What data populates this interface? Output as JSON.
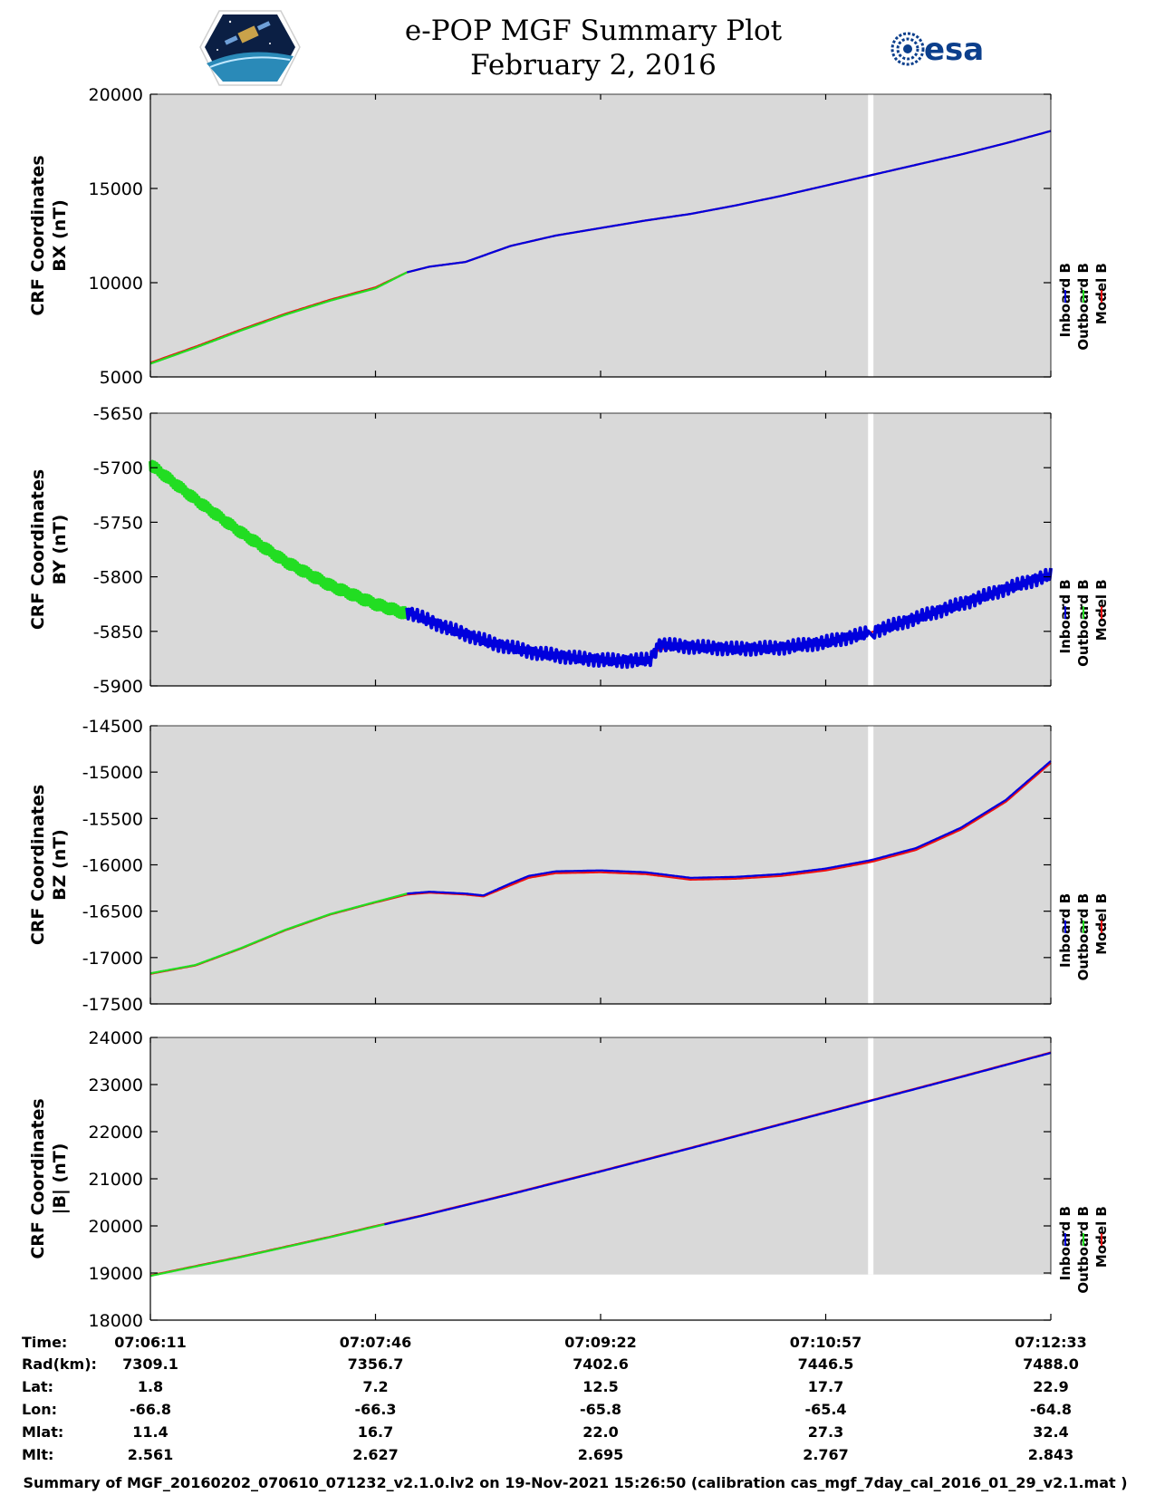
{
  "title": {
    "line1": "e-POP MGF Summary Plot",
    "line2": "February 2, 2016"
  },
  "logos": {
    "left": "cassiope-mission-logo",
    "right_text": "esa"
  },
  "colors": {
    "inboard": "#0000dd",
    "outboard": "#22dd22",
    "model": "#ee1111",
    "plot_bg": "#d9d9d9"
  },
  "legend": [
    "Inboard B",
    "Outboard B",
    "Model B"
  ],
  "chart_data": [
    {
      "type": "line",
      "id": "bx",
      "ylabel_line1": "CRF Coordinates",
      "ylabel_line2": "BX (nT)",
      "ylim": [
        5000,
        20000
      ],
      "yticks": [
        "20000",
        "15000",
        "10000",
        "5000"
      ],
      "x": [
        0,
        0.05,
        0.1,
        0.15,
        0.2,
        0.25,
        0.285,
        0.31,
        0.35,
        0.4,
        0.45,
        0.5,
        0.55,
        0.6,
        0.65,
        0.7,
        0.75,
        0.8,
        0.85,
        0.9,
        0.95,
        1.0
      ],
      "series": [
        {
          "name": "Inboard B",
          "start": 0.285,
          "values": [
            5700,
            6550,
            7450,
            8300,
            9050,
            9700,
            10550,
            10850,
            11100,
            11950,
            12500,
            12900,
            13300,
            13650,
            14100,
            14600,
            15150,
            15700,
            16250,
            16800,
            17400,
            18050
          ]
        },
        {
          "name": "Outboard B",
          "end": 0.285,
          "values": [
            5700,
            6550,
            7450,
            8300,
            9050,
            9700,
            10550,
            10850,
            11100,
            11950,
            12500,
            12900,
            13300,
            13650,
            14100,
            14600,
            15150,
            15700,
            16250,
            16800,
            17400,
            18050
          ]
        },
        {
          "name": "Model B",
          "values": [
            5750,
            6600,
            7500,
            8350,
            9100,
            9750,
            10550,
            10850,
            11100,
            11950,
            12500,
            12900,
            13300,
            13650,
            14100,
            14600,
            15150,
            15700,
            16250,
            16800,
            17400,
            18050
          ]
        }
      ]
    },
    {
      "type": "line",
      "id": "by",
      "ylabel_line1": "CRF Coordinates",
      "ylabel_line2": "BY (nT)",
      "ylim": [
        -5900,
        -5650
      ],
      "yticks": [
        "-5650",
        "-5700",
        "-5750",
        "-5800",
        "-5850",
        "-5900"
      ],
      "x": [
        0,
        0.05,
        0.1,
        0.15,
        0.2,
        0.25,
        0.285,
        0.33,
        0.38,
        0.43,
        0.48,
        0.52,
        0.555,
        0.565,
        0.6,
        0.65,
        0.7,
        0.75,
        0.8,
        0.85,
        0.9,
        0.95,
        1.0
      ],
      "series": [
        {
          "name": "Inboard B",
          "start": 0.285,
          "noise": 6,
          "values": [
            -5695,
            -5727,
            -5757,
            -5783,
            -5805,
            -5822,
            -5832,
            -5847,
            -5861,
            -5870,
            -5875,
            -5877,
            -5876,
            -5862,
            -5864,
            -5866,
            -5865,
            -5860,
            -5851,
            -5838,
            -5825,
            -5811,
            -5798
          ]
        },
        {
          "name": "Outboard B",
          "end": 0.285,
          "noise": 5,
          "values": [
            -5697,
            -5729,
            -5759,
            -5786,
            -5808,
            -5825,
            -5834,
            -5848,
            -5862,
            -5871,
            -5876,
            -5878,
            -5877,
            -5863,
            -5865,
            -5867,
            -5866,
            -5861,
            -5852,
            -5839,
            -5826,
            -5812,
            -5799
          ]
        },
        {
          "name": "Model B",
          "values": [
            -5696,
            -5728,
            -5758,
            -5784,
            -5806,
            -5823,
            -5833,
            -5848,
            -5862,
            -5871,
            -5876,
            -5878,
            -5877,
            -5866,
            -5866,
            -5867,
            -5865,
            -5860,
            -5851,
            -5838,
            -5825,
            -5811,
            -5798
          ]
        }
      ]
    },
    {
      "type": "line",
      "id": "bz",
      "ylabel_line1": "CRF Coordinates",
      "ylabel_line2": "BZ (nT)",
      "ylim": [
        -17500,
        -14500
      ],
      "yticks": [
        "-14500",
        "-15000",
        "-15500",
        "-16000",
        "-16500",
        "-17000",
        "-17500"
      ],
      "x": [
        0,
        0.05,
        0.1,
        0.15,
        0.2,
        0.25,
        0.285,
        0.31,
        0.35,
        0.37,
        0.4,
        0.42,
        0.45,
        0.5,
        0.55,
        0.575,
        0.6,
        0.65,
        0.7,
        0.75,
        0.8,
        0.85,
        0.9,
        0.95,
        1.0
      ],
      "series": [
        {
          "name": "Inboard B",
          "start": 0.285,
          "values": [
            -17170,
            -17080,
            -16900,
            -16700,
            -16530,
            -16400,
            -16310,
            -16290,
            -16310,
            -16330,
            -16200,
            -16120,
            -16070,
            -16060,
            -16080,
            -16110,
            -16140,
            -16130,
            -16100,
            -16040,
            -15950,
            -15820,
            -15600,
            -15300,
            -14880
          ]
        },
        {
          "name": "Outboard B",
          "end": 0.285,
          "values": [
            -17170,
            -17080,
            -16900,
            -16700,
            -16530,
            -16400,
            -16310,
            -16290,
            -16310,
            -16330,
            -16200,
            -16120,
            -16070,
            -16060,
            -16080,
            -16110,
            -16140,
            -16130,
            -16100,
            -16040,
            -15950,
            -15820,
            -15600,
            -15300,
            -14880
          ]
        },
        {
          "name": "Model B",
          "values": [
            -17175,
            -17085,
            -16905,
            -16705,
            -16535,
            -16405,
            -16320,
            -16300,
            -16320,
            -16340,
            -16220,
            -16140,
            -16090,
            -16080,
            -16100,
            -16130,
            -16160,
            -16150,
            -16120,
            -16060,
            -15970,
            -15840,
            -15620,
            -15320,
            -14900
          ]
        }
      ]
    },
    {
      "type": "line",
      "id": "bmag",
      "ylabel_line1": "CRF Coordinates",
      "ylabel_line2": "|B| (nT)",
      "ylim": [
        18000,
        24200
      ],
      "bg_floor": 19000,
      "yticks": [
        "24000",
        "23000",
        "22000",
        "21000",
        "20000",
        "19000",
        "18000"
      ],
      "x": [
        0,
        0.1,
        0.2,
        0.26,
        0.3,
        0.4,
        0.5,
        0.6,
        0.7,
        0.8,
        0.9,
        1.0
      ],
      "series": [
        {
          "name": "Inboard B",
          "start": 0.26,
          "values": [
            18970,
            19380,
            19820,
            20100,
            20280,
            20760,
            21260,
            21770,
            22290,
            22810,
            23330,
            23860
          ]
        },
        {
          "name": "Outboard B",
          "end": 0.26,
          "values": [
            18970,
            19380,
            19820,
            20100,
            20280,
            20760,
            21260,
            21770,
            22290,
            22810,
            23330,
            23860
          ]
        },
        {
          "name": "Model B",
          "values": [
            18980,
            19390,
            19830,
            20110,
            20290,
            20770,
            21270,
            21780,
            22300,
            22820,
            23340,
            23870
          ]
        }
      ]
    }
  ],
  "data_gap": {
    "start": 0.797,
    "end": 0.803
  },
  "info_table": {
    "labels": [
      "Time:",
      "Rad(km):",
      "Lat:",
      "Lon:",
      "Mlat:",
      "Mlt:"
    ],
    "columns": [
      [
        "07:06:11",
        "7309.1",
        "1.8",
        "-66.8",
        "11.4",
        "2.561"
      ],
      [
        "07:07:46",
        "7356.7",
        "7.2",
        "-66.3",
        "16.7",
        "2.627"
      ],
      [
        "07:09:22",
        "7402.6",
        "12.5",
        "-65.8",
        "22.0",
        "2.695"
      ],
      [
        "07:10:57",
        "7446.5",
        "17.7",
        "-65.4",
        "27.3",
        "2.767"
      ],
      [
        "07:12:33",
        "7488.0",
        "22.9",
        "-64.8",
        "32.4",
        "2.843"
      ]
    ]
  },
  "footer": "Summary of MGF_20160202_070610_071232_v2.1.0.lv2 on 19-Nov-2021 15:26:50 (calibration cas_mgf_7day_cal_2016_01_29_v2.1.mat )"
}
